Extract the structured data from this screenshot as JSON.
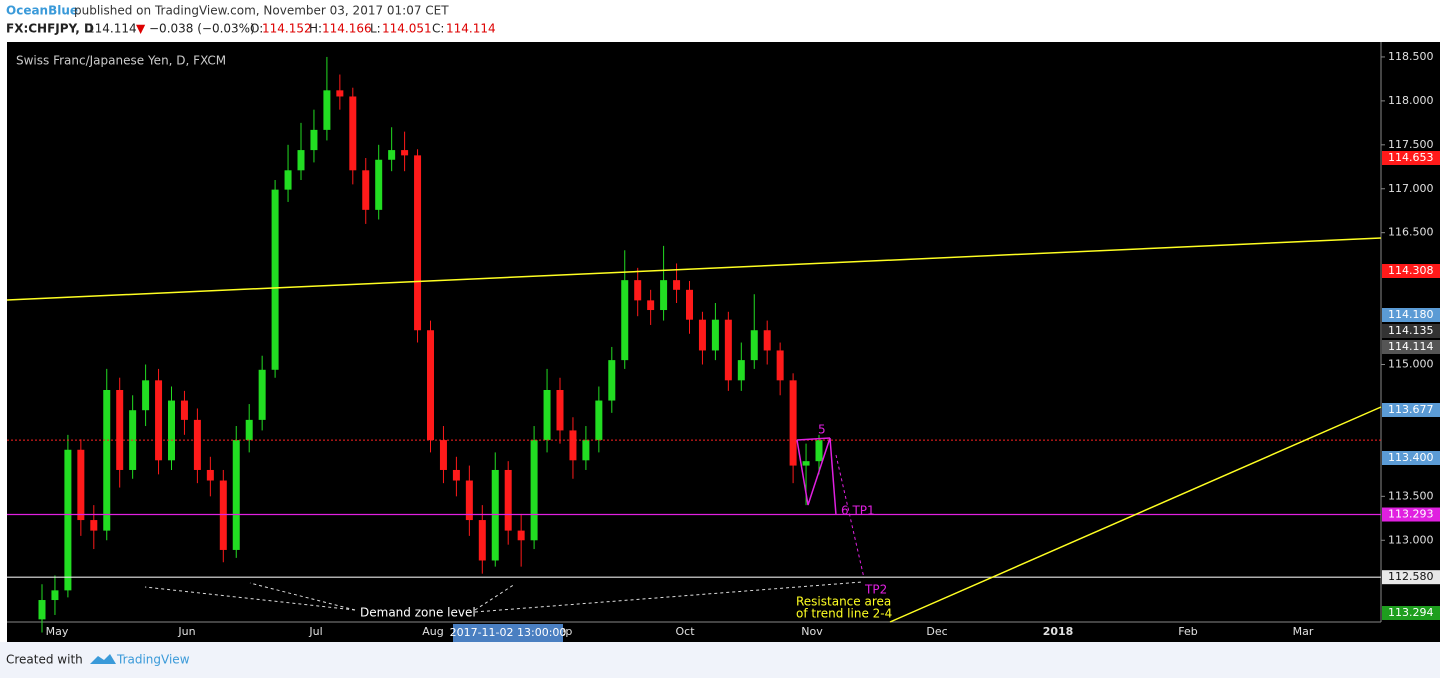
{
  "header": {
    "author": "OceanBlue",
    "published": "published on TradingView.com, November 03, 2017 01:07 CET",
    "symbol": "FX:CHFJPY, D",
    "last": "114.114",
    "arrow": "▼",
    "change": "−0.038 (−0.03%)",
    "o_label": "O:",
    "o": "114.152",
    "h_label": "H:",
    "h": "114.166",
    "l_label": "L:",
    "l": "114.051",
    "c_label": "C:",
    "c": "114.114"
  },
  "footer": {
    "created": "Created with",
    "brand": "TradingView"
  },
  "chart_data": {
    "type": "candlestick",
    "title": "Swiss Franc/Japanese Yen, D, FXCM",
    "up_color": "#22dd22",
    "down_color": "#ff1a1a",
    "open": [
      112.1,
      112.32,
      112.43,
      114.03,
      113.23,
      113.11,
      114.71,
      113.8,
      114.48,
      114.82,
      113.91,
      114.59,
      114.37,
      113.8,
      113.68,
      112.89,
      114.14,
      114.37,
      114.94,
      116.99,
      117.21,
      117.44,
      117.67,
      118.12,
      118.05,
      117.21,
      116.76,
      117.33,
      117.44,
      117.38,
      115.39,
      114.14,
      113.8,
      113.68,
      113.23,
      112.77,
      113.8,
      113.11,
      113.0,
      114.14,
      114.71,
      114.25,
      113.91,
      114.14,
      114.59,
      115.05,
      115.96,
      115.73,
      115.62,
      115.96,
      115.85,
      115.51,
      115.16,
      115.51,
      114.82,
      115.05,
      115.39,
      115.16,
      114.82,
      113.85,
      113.9
    ],
    "high": [
      112.5,
      112.6,
      114.2,
      114.15,
      113.4,
      114.95,
      114.85,
      114.65,
      115.0,
      114.95,
      114.75,
      114.7,
      114.5,
      113.95,
      113.8,
      114.3,
      114.55,
      115.1,
      117.1,
      117.5,
      117.75,
      117.9,
      118.5,
      118.3,
      118.15,
      117.35,
      117.5,
      117.7,
      117.65,
      117.45,
      115.5,
      114.3,
      113.95,
      113.85,
      113.4,
      114.0,
      113.9,
      113.3,
      114.3,
      114.95,
      114.85,
      114.4,
      114.3,
      114.75,
      115.2,
      116.3,
      116.1,
      115.85,
      116.35,
      116.15,
      115.95,
      115.6,
      115.7,
      115.6,
      115.25,
      115.8,
      115.5,
      115.25,
      114.9,
      114.1,
      114.2
    ],
    "low": [
      111.95,
      112.15,
      112.35,
      113.05,
      112.9,
      113.0,
      113.6,
      113.7,
      114.3,
      113.75,
      113.8,
      114.2,
      113.65,
      113.5,
      112.75,
      112.8,
      114.0,
      114.25,
      114.85,
      116.85,
      117.1,
      117.3,
      117.55,
      117.9,
      117.05,
      116.6,
      116.65,
      117.2,
      117.2,
      115.25,
      114.0,
      113.65,
      113.5,
      113.05,
      112.62,
      112.7,
      112.95,
      112.7,
      112.9,
      114.0,
      114.1,
      113.7,
      113.8,
      114.0,
      114.45,
      114.95,
      115.55,
      115.45,
      115.5,
      115.7,
      115.35,
      115.0,
      115.05,
      114.7,
      114.7,
      114.95,
      115.0,
      114.65,
      113.65,
      113.4,
      113.75
    ],
    "close": [
      112.32,
      112.43,
      114.03,
      113.23,
      113.11,
      114.71,
      113.8,
      114.48,
      114.82,
      113.91,
      114.59,
      114.37,
      113.8,
      113.68,
      112.89,
      114.14,
      114.37,
      114.94,
      116.99,
      117.21,
      117.44,
      117.67,
      118.12,
      118.05,
      117.21,
      116.76,
      117.33,
      117.44,
      117.38,
      115.39,
      114.14,
      113.8,
      113.68,
      113.23,
      112.77,
      113.8,
      113.11,
      113.0,
      114.14,
      114.71,
      114.25,
      113.91,
      114.14,
      114.59,
      115.05,
      115.96,
      115.73,
      115.62,
      115.96,
      115.85,
      115.51,
      115.16,
      115.51,
      114.82,
      115.05,
      115.39,
      115.16,
      114.82,
      113.85,
      113.9,
      114.14
    ],
    "ylim": [
      112.07,
      118.67
    ],
    "yticks": [
      {
        "value": 113.0,
        "label": "113.000"
      },
      {
        "value": 113.5,
        "label": "113.500"
      },
      {
        "value": 115.0,
        "label": "115.000"
      },
      {
        "value": 116.5,
        "label": "116.500"
      },
      {
        "value": 117.0,
        "label": "117.000"
      },
      {
        "value": 117.5,
        "label": "117.500"
      },
      {
        "value": 118.0,
        "label": "118.000"
      },
      {
        "value": 118.5,
        "label": "118.500"
      }
    ],
    "x_labels": [
      "May",
      "Jun",
      "Jul",
      "Aug",
      "Sep",
      "Oct",
      "Nov",
      "Dec",
      "2018",
      "Feb",
      "Mar"
    ],
    "crosshair_label": "2017-11-02 13:00:00",
    "levels": [
      {
        "value": 113.293,
        "label": "113.293",
        "color": "#e020e0"
      },
      {
        "value": 112.58,
        "label": "112.580",
        "color": "#e8e8e8"
      }
    ],
    "price_markers": [
      {
        "label": "114.653",
        "color": "#ff1a1a"
      },
      {
        "label": "114.308",
        "color": "#ff1a1a"
      },
      {
        "label": "114.180",
        "color": "#5b9bd5"
      },
      {
        "label": "114.135",
        "color": "#333333"
      },
      {
        "label": "114.114",
        "color": "#555555"
      },
      {
        "label": "113.677",
        "color": "#5b9bd5"
      },
      {
        "label": "113.400",
        "color": "#5b9bd5"
      },
      {
        "label": "113.294",
        "color": "#1e9e1e"
      }
    ],
    "annotations": {
      "point5": "5",
      "tp1": "6 TP1",
      "tp2": "TP2",
      "resistance1": "Resistance area",
      "resistance2": "of trend line 2-4",
      "demand": "Demand zone level"
    }
  }
}
